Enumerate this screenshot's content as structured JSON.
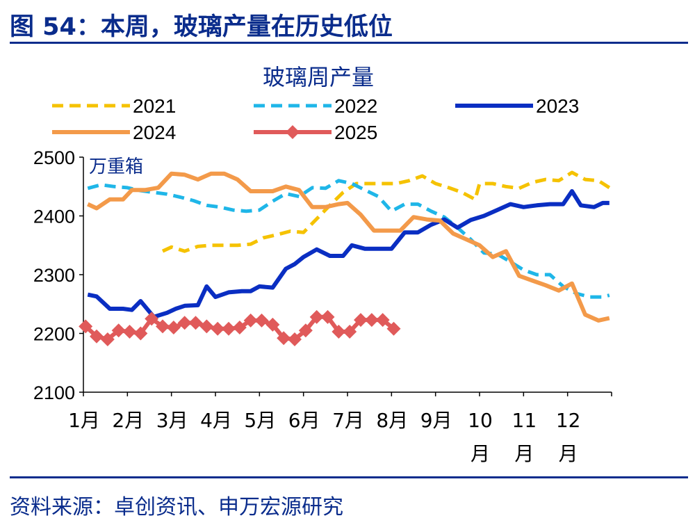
{
  "header": {
    "title": "图 54：本周，玻璃产量在历史低位"
  },
  "footer": {
    "source": "资料来源：卓创资讯、申万宏源研究"
  },
  "chart_data": {
    "type": "line",
    "title": "玻璃周产量",
    "unit_label": "万重箱",
    "ylim": [
      2100,
      2500
    ],
    "yticks": [
      2100,
      2200,
      2300,
      2400,
      2500
    ],
    "xlim": [
      1,
      13
    ],
    "month_labels": [
      {
        "month": 1,
        "lines": [
          "1月"
        ]
      },
      {
        "month": 2,
        "lines": [
          "2月"
        ]
      },
      {
        "month": 3,
        "lines": [
          "3月"
        ]
      },
      {
        "month": 4,
        "lines": [
          "4月"
        ]
      },
      {
        "month": 5,
        "lines": [
          "5月"
        ]
      },
      {
        "month": 6,
        "lines": [
          "6月"
        ]
      },
      {
        "month": 7,
        "lines": [
          "7月"
        ]
      },
      {
        "month": 8,
        "lines": [
          "8月"
        ]
      },
      {
        "month": 9,
        "lines": [
          "9月"
        ]
      },
      {
        "month": 10,
        "lines": [
          "10",
          "月"
        ]
      },
      {
        "month": 11,
        "lines": [
          "11",
          "月"
        ]
      },
      {
        "month": 12,
        "lines": [
          "12",
          "月"
        ]
      }
    ],
    "legend_position": "top",
    "series": [
      {
        "name": "2021",
        "color": "#f5c200",
        "style": "dashed",
        "marker": "none",
        "x": [
          2.8,
          3.0,
          3.3,
          3.6,
          3.9,
          4.2,
          4.5,
          4.8,
          5.1,
          5.4,
          5.7,
          6.0,
          6.3,
          6.6,
          6.9,
          7.2,
          7.5,
          7.8,
          8.1,
          8.4,
          8.7,
          9.0,
          9.3,
          9.6,
          9.9,
          10.0,
          10.3,
          10.6,
          10.9,
          11.2,
          11.5,
          11.8,
          12.1,
          12.4,
          12.7,
          12.95
        ],
        "y": [
          2340,
          2347,
          2340,
          2348,
          2350,
          2350,
          2350,
          2352,
          2363,
          2368,
          2374,
          2372,
          2395,
          2418,
          2440,
          2455,
          2455,
          2455,
          2455,
          2460,
          2468,
          2455,
          2448,
          2440,
          2428,
          2455,
          2455,
          2450,
          2447,
          2457,
          2462,
          2460,
          2474,
          2462,
          2460,
          2448
        ]
      },
      {
        "name": "2022",
        "color": "#1fb6e8",
        "style": "dashed",
        "marker": "none",
        "x": [
          1.1,
          1.4,
          1.7,
          2.0,
          2.3,
          2.6,
          2.9,
          3.2,
          3.5,
          3.8,
          4.1,
          4.4,
          4.7,
          5.0,
          5.3,
          5.6,
          5.9,
          6.2,
          6.5,
          6.8,
          7.1,
          7.4,
          7.7,
          8.0,
          8.3,
          8.6,
          8.9,
          9.2,
          9.5,
          9.8,
          10.1,
          10.4,
          10.7,
          11.0,
          11.3,
          11.6,
          11.9,
          12.2,
          12.5,
          12.8,
          12.95
        ],
        "y": [
          2447,
          2453,
          2450,
          2448,
          2443,
          2440,
          2437,
          2432,
          2426,
          2418,
          2415,
          2410,
          2408,
          2410,
          2425,
          2438,
          2433,
          2448,
          2447,
          2460,
          2455,
          2444,
          2433,
          2408,
          2420,
          2420,
          2408,
          2398,
          2380,
          2360,
          2337,
          2335,
          2322,
          2308,
          2300,
          2300,
          2280,
          2268,
          2262,
          2262,
          2265
        ]
      },
      {
        "name": "2023",
        "color": "#0a2ec2",
        "style": "solid",
        "marker": "none",
        "x": [
          1.1,
          1.3,
          1.6,
          1.9,
          2.1,
          2.3,
          2.6,
          2.9,
          3.1,
          3.3,
          3.6,
          3.8,
          4.0,
          4.3,
          4.6,
          4.8,
          5.0,
          5.3,
          5.6,
          5.8,
          6.0,
          6.3,
          6.6,
          6.9,
          7.1,
          7.4,
          7.7,
          8.0,
          8.3,
          8.6,
          8.9,
          9.2,
          9.5,
          9.8,
          10.1,
          10.4,
          10.7,
          11.0,
          11.3,
          11.6,
          11.9,
          12.1,
          12.3,
          12.6,
          12.8,
          12.95
        ],
        "y": [
          2266,
          2263,
          2242,
          2242,
          2240,
          2255,
          2228,
          2235,
          2242,
          2247,
          2248,
          2280,
          2262,
          2270,
          2272,
          2272,
          2280,
          2278,
          2310,
          2318,
          2330,
          2343,
          2332,
          2332,
          2350,
          2344,
          2344,
          2344,
          2372,
          2372,
          2385,
          2394,
          2380,
          2393,
          2400,
          2410,
          2420,
          2415,
          2418,
          2420,
          2420,
          2442,
          2418,
          2415,
          2422,
          2422
        ]
      },
      {
        "name": "2024",
        "color": "#f39a4a",
        "style": "solid",
        "marker": "none",
        "x": [
          1.1,
          1.3,
          1.6,
          1.9,
          2.1,
          2.4,
          2.7,
          3.0,
          3.3,
          3.6,
          3.9,
          4.2,
          4.5,
          4.8,
          5.0,
          5.3,
          5.6,
          5.9,
          6.2,
          6.5,
          6.8,
          7.0,
          7.3,
          7.6,
          7.9,
          8.2,
          8.5,
          8.8,
          9.1,
          9.4,
          9.7,
          10.0,
          10.3,
          10.6,
          10.9,
          11.2,
          11.5,
          11.8,
          12.1,
          12.4,
          12.7,
          12.95
        ],
        "y": [
          2420,
          2413,
          2428,
          2428,
          2444,
          2444,
          2448,
          2472,
          2470,
          2462,
          2472,
          2472,
          2462,
          2442,
          2442,
          2442,
          2450,
          2444,
          2415,
          2415,
          2420,
          2422,
          2402,
          2375,
          2375,
          2375,
          2398,
          2394,
          2392,
          2370,
          2360,
          2350,
          2330,
          2340,
          2298,
          2290,
          2282,
          2273,
          2285,
          2232,
          2222,
          2226
        ]
      },
      {
        "name": "2025",
        "color": "#e05a5a",
        "style": "solid",
        "marker": "diamond",
        "x": [
          1.05,
          1.3,
          1.55,
          1.8,
          2.05,
          2.3,
          2.55,
          2.8,
          3.05,
          3.3,
          3.55,
          3.8,
          4.05,
          4.3,
          4.55,
          4.8,
          5.05,
          5.3,
          5.55,
          5.8,
          6.05,
          6.3,
          6.55,
          6.8,
          7.05,
          7.3,
          7.55,
          7.8,
          8.05
        ],
        "y": [
          2212,
          2195,
          2190,
          2205,
          2203,
          2200,
          2225,
          2212,
          2210,
          2218,
          2218,
          2212,
          2208,
          2208,
          2210,
          2222,
          2222,
          2215,
          2192,
          2190,
          2205,
          2228,
          2228,
          2203,
          2203,
          2223,
          2223,
          2223,
          2208
        ]
      }
    ],
    "legend_rows": [
      [
        "2021",
        "2022",
        "2023"
      ],
      [
        "2024",
        "2025"
      ]
    ]
  }
}
